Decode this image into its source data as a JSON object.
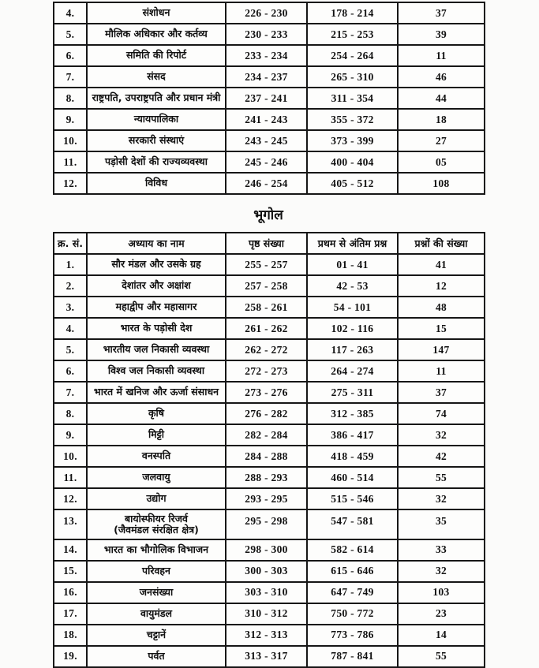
{
  "sections": {
    "geography_heading": "भूगोल"
  },
  "table1": {
    "description": "continuation-of-polity-contents-table",
    "rows": [
      {
        "sno": "4.",
        "chapter": "संशोधन",
        "pages": "226 - 230",
        "range": "178 - 214",
        "count": "37"
      },
      {
        "sno": "5.",
        "chapter": "मौलिक अधिकार और कर्तव्य",
        "pages": "230 - 233",
        "range": "215 - 253",
        "count": "39"
      },
      {
        "sno": "6.",
        "chapter": "समिति की रिपोर्ट",
        "pages": "233 - 234",
        "range": "254 - 264",
        "count": "11"
      },
      {
        "sno": "7.",
        "chapter": "संसद",
        "pages": "234 - 237",
        "range": "265 - 310",
        "count": "46"
      },
      {
        "sno": "8.",
        "chapter": "राष्ट्रपति, उपराष्ट्रपति और प्रधान मंत्री",
        "pages": "237 - 241",
        "range": "311 - 354",
        "count": "44"
      },
      {
        "sno": "9.",
        "chapter": "न्यायपालिका",
        "pages": "241 - 243",
        "range": "355 - 372",
        "count": "18"
      },
      {
        "sno": "10.",
        "chapter": "सरकारी संस्थाएं",
        "pages": "243 - 245",
        "range": "373 - 399",
        "count": "27"
      },
      {
        "sno": "11.",
        "chapter": "पड़ोसी देशों की राज्यव्यवस्था",
        "pages": "245 - 246",
        "range": "400 - 404",
        "count": "05"
      },
      {
        "sno": "12.",
        "chapter": "विविध",
        "pages": "246 - 254",
        "range": "405 - 512",
        "count": "108"
      }
    ]
  },
  "table2": {
    "headers": [
      "क्र. सं.",
      "अध्याय का नाम",
      "पृष्ठ संख्या",
      "प्रथम से अंतिम प्रश्न",
      "प्रश्नों की संख्या"
    ],
    "rows": [
      {
        "sno": "1.",
        "chapter": "सौर मंडल और उसके ग्रह",
        "pages": "255 - 257",
        "range": "01 - 41",
        "count": "41"
      },
      {
        "sno": "2.",
        "chapter": "देशांतर और अक्षांश",
        "pages": "257 - 258",
        "range": "42 - 53",
        "count": "12"
      },
      {
        "sno": "3.",
        "chapter": "महाद्वीप और महासागर",
        "pages": "258 - 261",
        "range": "54 - 101",
        "count": "48"
      },
      {
        "sno": "4.",
        "chapter": "भारत के पड़ोसी देश",
        "pages": "261 - 262",
        "range": "102 - 116",
        "count": "15"
      },
      {
        "sno": "5.",
        "chapter": "भारतीय जल निकासी व्यवस्था",
        "pages": "262 - 272",
        "range": "117 - 263",
        "count": "147"
      },
      {
        "sno": "6.",
        "chapter": "विश्व जल निकासी व्यवस्था",
        "pages": "272 - 273",
        "range": "264 - 274",
        "count": "11"
      },
      {
        "sno": "7.",
        "chapter": "भारत में खनिज और ऊर्जा संसाधन",
        "pages": "273 - 276",
        "range": "275 - 311",
        "count": "37"
      },
      {
        "sno": "8.",
        "chapter": "कृषि",
        "pages": "276 - 282",
        "range": "312 - 385",
        "count": "74"
      },
      {
        "sno": "9.",
        "chapter": "मिट्टी",
        "pages": "282 - 284",
        "range": "386 - 417",
        "count": "32"
      },
      {
        "sno": "10.",
        "chapter": "वनस्पति",
        "pages": "284 - 288",
        "range": "418 - 459",
        "count": "42"
      },
      {
        "sno": "11.",
        "chapter": "जलवायु",
        "pages": "288 - 293",
        "range": "460 - 514",
        "count": "55"
      },
      {
        "sno": "12.",
        "chapter": "उद्योग",
        "pages": "293 - 295",
        "range": "515 - 546",
        "count": "32"
      },
      {
        "sno": "13.",
        "chapter": "बायोस्फीयर रिजर्व\n(जैवमंडल संरक्षित क्षेत्र)",
        "pages": "295 - 298",
        "range": "547 - 581",
        "count": "35"
      },
      {
        "sno": "14.",
        "chapter": "भारत का भौगोलिक विभाजन",
        "pages": "298 - 300",
        "range": "582 - 614",
        "count": "33"
      },
      {
        "sno": "15.",
        "chapter": "परिवहन",
        "pages": "300 - 303",
        "range": "615 - 646",
        "count": "32"
      },
      {
        "sno": "16.",
        "chapter": "जनसंख्या",
        "pages": "303 - 310",
        "range": "647 - 749",
        "count": "103"
      },
      {
        "sno": "17.",
        "chapter": "वायुमंडल",
        "pages": "310 - 312",
        "range": "750 - 772",
        "count": "23"
      },
      {
        "sno": "18.",
        "chapter": "चट्टानें",
        "pages": "312 - 313",
        "range": "773 - 786",
        "count": "14"
      },
      {
        "sno": "19.",
        "chapter": "पर्वत",
        "pages": "313 - 317",
        "range": "787 - 841",
        "count": "55"
      }
    ]
  }
}
